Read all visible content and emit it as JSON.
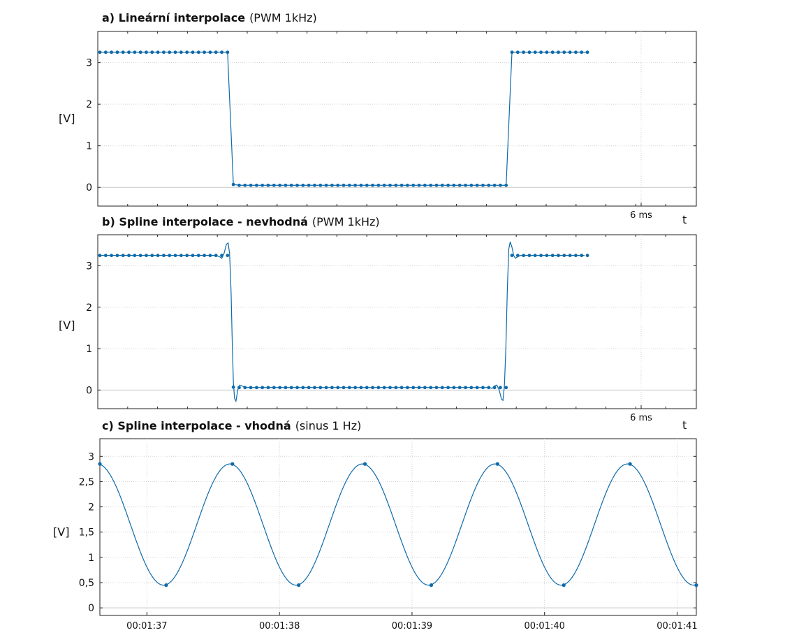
{
  "chart_data": [
    {
      "type": "line",
      "title": "a) Lineární interpolace",
      "subtitle": "(PWM 1kHz)",
      "ylabel": "[V]",
      "xlabel": "t",
      "ylim": [
        -0.45,
        3.75
      ],
      "yticks": [
        0,
        1,
        2,
        3
      ],
      "xtick_labels": [
        "6 ms"
      ],
      "interpolation": "linear",
      "high_level": 3.25,
      "low_level": 0.05,
      "series": [
        {
          "name": "",
          "samples": [
            {
              "t": 0,
              "v": 3.25
            },
            {
              "t": 1,
              "v": 3.25
            },
            {
              "t": 2,
              "v": 3.25
            },
            {
              "t": 3,
              "v": 3.25
            },
            {
              "t": 4,
              "v": 3.25
            },
            {
              "t": 5,
              "v": 3.25
            },
            {
              "t": 6,
              "v": 3.25
            },
            {
              "t": 7,
              "v": 3.25
            },
            {
              "t": 8,
              "v": 3.25
            },
            {
              "t": 9,
              "v": 3.25
            },
            {
              "t": 10,
              "v": 3.25
            },
            {
              "t": 11,
              "v": 3.25
            },
            {
              "t": 12,
              "v": 3.25
            },
            {
              "t": 13,
              "v": 3.25
            },
            {
              "t": 14,
              "v": 3.25
            },
            {
              "t": 15,
              "v": 3.25
            },
            {
              "t": 16,
              "v": 3.25
            },
            {
              "t": 17,
              "v": 3.25
            },
            {
              "t": 18,
              "v": 3.25
            },
            {
              "t": 19,
              "v": 3.25
            },
            {
              "t": 20,
              "v": 3.25
            },
            {
              "t": 21,
              "v": 3.25
            },
            {
              "t": 22,
              "v": 3.25
            },
            {
              "t": 23,
              "v": 0.07
            },
            {
              "t": 24,
              "v": 0.05
            },
            {
              "t": 25,
              "v": 0.05
            },
            {
              "t": 26,
              "v": 0.05
            },
            {
              "t": 27,
              "v": 0.05
            },
            {
              "t": 28,
              "v": 0.05
            },
            {
              "t": 29,
              "v": 0.05
            },
            {
              "t": 30,
              "v": 0.05
            },
            {
              "t": 31,
              "v": 0.05
            },
            {
              "t": 32,
              "v": 0.05
            },
            {
              "t": 33,
              "v": 0.05
            },
            {
              "t": 34,
              "v": 0.05
            },
            {
              "t": 35,
              "v": 0.05
            },
            {
              "t": 36,
              "v": 0.05
            },
            {
              "t": 37,
              "v": 0.05
            },
            {
              "t": 38,
              "v": 0.05
            },
            {
              "t": 39,
              "v": 0.05
            },
            {
              "t": 40,
              "v": 0.05
            },
            {
              "t": 41,
              "v": 0.05
            },
            {
              "t": 42,
              "v": 0.05
            },
            {
              "t": 43,
              "v": 0.05
            },
            {
              "t": 44,
              "v": 0.05
            },
            {
              "t": 45,
              "v": 0.05
            },
            {
              "t": 46,
              "v": 0.05
            },
            {
              "t": 47,
              "v": 0.05
            },
            {
              "t": 48,
              "v": 0.05
            },
            {
              "t": 49,
              "v": 0.05
            },
            {
              "t": 50,
              "v": 0.05
            },
            {
              "t": 51,
              "v": 0.05
            },
            {
              "t": 52,
              "v": 0.05
            },
            {
              "t": 53,
              "v": 0.05
            },
            {
              "t": 54,
              "v": 0.05
            },
            {
              "t": 55,
              "v": 0.05
            },
            {
              "t": 56,
              "v": 0.05
            },
            {
              "t": 57,
              "v": 0.05
            },
            {
              "t": 58,
              "v": 0.05
            },
            {
              "t": 59,
              "v": 0.05
            },
            {
              "t": 60,
              "v": 0.05
            },
            {
              "t": 61,
              "v": 0.05
            },
            {
              "t": 62,
              "v": 0.05
            },
            {
              "t": 63,
              "v": 0.05
            },
            {
              "t": 64,
              "v": 0.05
            },
            {
              "t": 65,
              "v": 0.05
            },
            {
              "t": 66,
              "v": 0.05
            },
            {
              "t": 67,
              "v": 0.05
            },
            {
              "t": 68,
              "v": 0.05
            },
            {
              "t": 69,
              "v": 0.05
            },
            {
              "t": 70,
              "v": 0.05
            },
            {
              "t": 71,
              "v": 3.25
            },
            {
              "t": 72,
              "v": 3.25
            },
            {
              "t": 73,
              "v": 3.25
            },
            {
              "t": 74,
              "v": 3.25
            },
            {
              "t": 75,
              "v": 3.25
            },
            {
              "t": 76,
              "v": 3.25
            },
            {
              "t": 77,
              "v": 3.25
            },
            {
              "t": 78,
              "v": 3.25
            },
            {
              "t": 79,
              "v": 3.25
            },
            {
              "t": 80,
              "v": 3.25
            },
            {
              "t": 81,
              "v": 3.25
            },
            {
              "t": 82,
              "v": 3.25
            },
            {
              "t": 83,
              "v": 3.25
            },
            {
              "t": 84,
              "v": 3.25
            }
          ]
        }
      ]
    },
    {
      "type": "line",
      "title": "b) Spline interpolace - nevhodná",
      "subtitle": "(PWM 1kHz)",
      "ylabel": "[V]",
      "xlabel": "t",
      "ylim": [
        -0.45,
        3.75
      ],
      "yticks": [
        0,
        1,
        2,
        3
      ],
      "xtick_labels": [
        "6 ms"
      ],
      "interpolation": "spline",
      "high_level": 3.25,
      "low_level": 0.06,
      "series": [
        {
          "name": "",
          "samples": [
            {
              "t": 0,
              "v": 3.25
            },
            {
              "t": 1,
              "v": 3.25
            },
            {
              "t": 2,
              "v": 3.25
            },
            {
              "t": 3,
              "v": 3.25
            },
            {
              "t": 4,
              "v": 3.25
            },
            {
              "t": 5,
              "v": 3.25
            },
            {
              "t": 6,
              "v": 3.25
            },
            {
              "t": 7,
              "v": 3.25
            },
            {
              "t": 8,
              "v": 3.25
            },
            {
              "t": 9,
              "v": 3.25
            },
            {
              "t": 10,
              "v": 3.25
            },
            {
              "t": 11,
              "v": 3.25
            },
            {
              "t": 12,
              "v": 3.25
            },
            {
              "t": 13,
              "v": 3.25
            },
            {
              "t": 14,
              "v": 3.25
            },
            {
              "t": 15,
              "v": 3.25
            },
            {
              "t": 16,
              "v": 3.25
            },
            {
              "t": 17,
              "v": 3.25
            },
            {
              "t": 18,
              "v": 3.25
            },
            {
              "t": 19,
              "v": 3.25
            },
            {
              "t": 20,
              "v": 3.25
            },
            {
              "t": 21,
              "v": 3.25
            },
            {
              "t": 22,
              "v": 3.25
            },
            {
              "t": 23,
              "v": 0.07
            },
            {
              "t": 24,
              "v": 0.06
            },
            {
              "t": 25,
              "v": 0.06
            },
            {
              "t": 26,
              "v": 0.06
            },
            {
              "t": 27,
              "v": 0.06
            },
            {
              "t": 28,
              "v": 0.06
            },
            {
              "t": 29,
              "v": 0.06
            },
            {
              "t": 30,
              "v": 0.06
            },
            {
              "t": 31,
              "v": 0.06
            },
            {
              "t": 32,
              "v": 0.06
            },
            {
              "t": 33,
              "v": 0.06
            },
            {
              "t": 34,
              "v": 0.06
            },
            {
              "t": 35,
              "v": 0.06
            },
            {
              "t": 36,
              "v": 0.06
            },
            {
              "t": 37,
              "v": 0.06
            },
            {
              "t": 38,
              "v": 0.06
            },
            {
              "t": 39,
              "v": 0.06
            },
            {
              "t": 40,
              "v": 0.06
            },
            {
              "t": 41,
              "v": 0.06
            },
            {
              "t": 42,
              "v": 0.06
            },
            {
              "t": 43,
              "v": 0.06
            },
            {
              "t": 44,
              "v": 0.06
            },
            {
              "t": 45,
              "v": 0.06
            },
            {
              "t": 46,
              "v": 0.06
            },
            {
              "t": 47,
              "v": 0.06
            },
            {
              "t": 48,
              "v": 0.06
            },
            {
              "t": 49,
              "v": 0.06
            },
            {
              "t": 50,
              "v": 0.06
            },
            {
              "t": 51,
              "v": 0.06
            },
            {
              "t": 52,
              "v": 0.06
            },
            {
              "t": 53,
              "v": 0.06
            },
            {
              "t": 54,
              "v": 0.06
            },
            {
              "t": 55,
              "v": 0.06
            },
            {
              "t": 56,
              "v": 0.06
            },
            {
              "t": 57,
              "v": 0.06
            },
            {
              "t": 58,
              "v": 0.06
            },
            {
              "t": 59,
              "v": 0.06
            },
            {
              "t": 60,
              "v": 0.06
            },
            {
              "t": 61,
              "v": 0.06
            },
            {
              "t": 62,
              "v": 0.06
            },
            {
              "t": 63,
              "v": 0.06
            },
            {
              "t": 64,
              "v": 0.06
            },
            {
              "t": 65,
              "v": 0.06
            },
            {
              "t": 66,
              "v": 0.06
            },
            {
              "t": 67,
              "v": 0.06
            },
            {
              "t": 68,
              "v": 0.06
            },
            {
              "t": 69,
              "v": 0.06
            },
            {
              "t": 70,
              "v": 0.06
            },
            {
              "t": 71,
              "v": 3.25
            },
            {
              "t": 72,
              "v": 3.25
            },
            {
              "t": 73,
              "v": 3.25
            },
            {
              "t": 74,
              "v": 3.25
            },
            {
              "t": 75,
              "v": 3.25
            },
            {
              "t": 76,
              "v": 3.25
            },
            {
              "t": 77,
              "v": 3.25
            },
            {
              "t": 78,
              "v": 3.25
            },
            {
              "t": 79,
              "v": 3.25
            },
            {
              "t": 80,
              "v": 3.25
            },
            {
              "t": 81,
              "v": 3.25
            },
            {
              "t": 82,
              "v": 3.25
            },
            {
              "t": 83,
              "v": 3.25
            },
            {
              "t": 84,
              "v": 3.25
            }
          ]
        }
      ]
    },
    {
      "type": "line",
      "title": "c) Spline interpolace - vhodná",
      "subtitle": "(sinus 1 Hz)",
      "ylabel": "[V]",
      "xlabel": "",
      "ylim": [
        -0.15,
        3.35
      ],
      "yticks": [
        0,
        0.5,
        1,
        1.5,
        2,
        2.5,
        3
      ],
      "ytick_labels": [
        "0",
        "0,5",
        "1",
        "1,5",
        "2",
        "2,5",
        "3"
      ],
      "xlim_seconds": [
        96.645,
        101.145
      ],
      "xtick_seconds": [
        97,
        98,
        99,
        100,
        101
      ],
      "xtick_labels": [
        "00:01:37",
        "00:01:38",
        "00:01:39",
        "00:01:40",
        "00:01:41"
      ],
      "interpolation": "spline",
      "series": [
        {
          "name": "",
          "points": [
            {
              "x": 96.645,
              "y": 2.85
            },
            {
              "x": 97.145,
              "y": 0.45
            },
            {
              "x": 97.645,
              "y": 2.85
            },
            {
              "x": 98.145,
              "y": 0.45
            },
            {
              "x": 98.645,
              "y": 2.85
            },
            {
              "x": 99.145,
              "y": 0.45
            },
            {
              "x": 99.645,
              "y": 2.85
            },
            {
              "x": 100.145,
              "y": 0.45
            },
            {
              "x": 100.645,
              "y": 2.85
            },
            {
              "x": 101.145,
              "y": 0.45
            }
          ]
        }
      ]
    }
  ]
}
